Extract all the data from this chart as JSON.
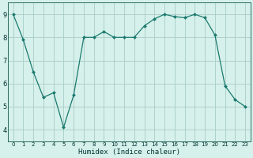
{
  "x": [
    0,
    1,
    2,
    3,
    4,
    5,
    6,
    7,
    8,
    9,
    10,
    11,
    12,
    13,
    14,
    15,
    16,
    17,
    18,
    19,
    20,
    21,
    22,
    23
  ],
  "y": [
    9.0,
    7.9,
    6.5,
    5.4,
    5.6,
    4.1,
    5.5,
    8.0,
    8.0,
    8.25,
    8.0,
    8.0,
    8.0,
    8.5,
    8.8,
    9.0,
    8.9,
    8.85,
    9.0,
    8.85,
    8.1,
    5.9,
    5.3,
    5.0
  ],
  "xlabel": "Humidex (Indice chaleur)",
  "ylim": [
    3.5,
    9.5
  ],
  "xlim": [
    -0.5,
    23.5
  ],
  "yticks": [
    4,
    5,
    6,
    7,
    8,
    9
  ],
  "xticks": [
    0,
    1,
    2,
    3,
    4,
    5,
    6,
    7,
    8,
    9,
    10,
    11,
    12,
    13,
    14,
    15,
    16,
    17,
    18,
    19,
    20,
    21,
    22,
    23
  ],
  "line_color": "#1a7a6e",
  "marker": "D",
  "marker_size": 2.0,
  "bg_color": "#d6f0eb",
  "grid_color": "#a8cdc7",
  "border_color": "#2a6b5e",
  "font_color": "#003333",
  "tick_fontsize_x": 5.0,
  "tick_fontsize_y": 6.0,
  "xlabel_fontsize": 6.5,
  "linewidth": 0.9
}
